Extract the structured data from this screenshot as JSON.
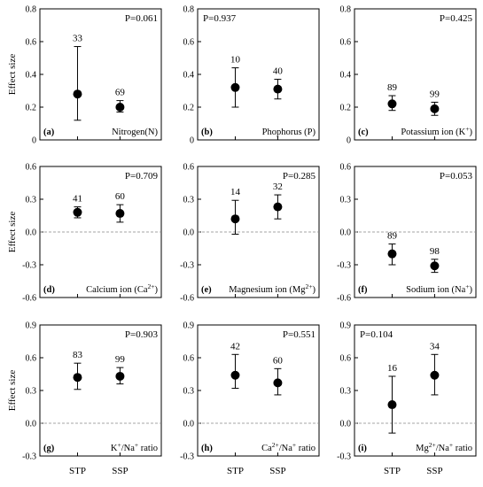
{
  "chart_data": [
    {
      "panel": "(a)",
      "type": "scatter",
      "ylabel": "Effect size",
      "ylim": [
        0,
        0.8
      ],
      "yticks": [
        "0",
        "0.2",
        "0.4",
        "0.6",
        "0.8"
      ],
      "zero_line": false,
      "pvalue": "P=0.061",
      "pvalue_pos": "right",
      "variable": "Nitrogen(N)",
      "categories": [
        "STP",
        "SSP"
      ],
      "values": [
        0.28,
        0.2
      ],
      "lower": [
        0.12,
        0.17
      ],
      "upper": [
        0.57,
        0.24
      ],
      "n": [
        "33",
        "69"
      ]
    },
    {
      "panel": "(b)",
      "type": "scatter",
      "ylabel": "",
      "ylim": [
        0,
        0.8
      ],
      "yticks": [
        "0",
        "0.2",
        "0.4",
        "0.6",
        "0.8"
      ],
      "zero_line": false,
      "pvalue": "P=0.937",
      "pvalue_pos": "left",
      "variable": "Phophorus (P)",
      "categories": [
        "STP",
        "SSP"
      ],
      "values": [
        0.32,
        0.31
      ],
      "lower": [
        0.2,
        0.25
      ],
      "upper": [
        0.44,
        0.37
      ],
      "n": [
        "10",
        "40"
      ]
    },
    {
      "panel": "(c)",
      "type": "scatter",
      "ylabel": "",
      "ylim": [
        0,
        0.8
      ],
      "yticks": [
        "0",
        "0.2",
        "0.4",
        "0.6",
        "0.8"
      ],
      "zero_line": false,
      "pvalue": "P=0.425",
      "pvalue_pos": "right",
      "variable": "Potassium ion (K",
      "variable_sup": "+",
      "variable_end": ")",
      "categories": [
        "STP",
        "SSP"
      ],
      "values": [
        0.22,
        0.19
      ],
      "lower": [
        0.18,
        0.15
      ],
      "upper": [
        0.27,
        0.23
      ],
      "n": [
        "89",
        "99"
      ]
    },
    {
      "panel": "(d)",
      "type": "scatter",
      "ylabel": "Effect size",
      "ylim": [
        -0.6,
        0.6
      ],
      "yticks": [
        "-0.6",
        "-0.3",
        "0.0",
        "0.3",
        "0.6"
      ],
      "zero_line": true,
      "pvalue": "P=0.709",
      "pvalue_pos": "right",
      "variable": "Calcium ion (Ca",
      "variable_sup": "2+",
      "variable_end": ")",
      "categories": [
        "STP",
        "SSP"
      ],
      "values": [
        0.18,
        0.17
      ],
      "lower": [
        0.13,
        0.09
      ],
      "upper": [
        0.23,
        0.25
      ],
      "n": [
        "41",
        "60"
      ]
    },
    {
      "panel": "(e)",
      "type": "scatter",
      "ylabel": "",
      "ylim": [
        -0.6,
        0.6
      ],
      "yticks": [
        "-0.6",
        "-0.3",
        "0.0",
        "0.3",
        "0.6"
      ],
      "zero_line": true,
      "pvalue": "P=0.285",
      "pvalue_pos": "right",
      "variable": "Magnesium ion (Mg",
      "variable_sup": "2+",
      "variable_end": ")",
      "categories": [
        "STP",
        "SSP"
      ],
      "values": [
        0.12,
        0.23
      ],
      "lower": [
        -0.02,
        0.12
      ],
      "upper": [
        0.29,
        0.34
      ],
      "n": [
        "14",
        "32"
      ]
    },
    {
      "panel": "(f)",
      "type": "scatter",
      "ylabel": "",
      "ylim": [
        -0.6,
        0.6
      ],
      "yticks": [
        "-0.6",
        "-0.3",
        "0.0",
        "0.3",
        "0.6"
      ],
      "zero_line": true,
      "pvalue": "P=0.053",
      "pvalue_pos": "right",
      "variable": "Sodium ion (Na",
      "variable_sup": "+",
      "variable_end": ")",
      "categories": [
        "STP",
        "SSP"
      ],
      "values": [
        -0.2,
        -0.31
      ],
      "lower": [
        -0.3,
        -0.37
      ],
      "upper": [
        -0.11,
        -0.25
      ],
      "n": [
        "89",
        "98"
      ]
    },
    {
      "panel": "(g)",
      "type": "scatter",
      "ylabel": "Effect size",
      "ylim": [
        -0.3,
        0.9
      ],
      "yticks": [
        "-0.3",
        "0.0",
        "0.3",
        "0.6",
        "0.9"
      ],
      "zero_line": true,
      "pvalue": "P=0.903",
      "pvalue_pos": "right",
      "variable": "K",
      "variable_sup": "+",
      "variable_end": "/Na",
      "variable_sup2": "+",
      "variable_end2": " ratio",
      "categories": [
        "STP",
        "SSP"
      ],
      "values": [
        0.42,
        0.43
      ],
      "lower": [
        0.31,
        0.36
      ],
      "upper": [
        0.55,
        0.51
      ],
      "n": [
        "83",
        "99"
      ]
    },
    {
      "panel": "(h)",
      "type": "scatter",
      "ylabel": "",
      "ylim": [
        -0.3,
        0.9
      ],
      "yticks": [
        "-0.3",
        "0.0",
        "0.3",
        "0.6",
        "0.9"
      ],
      "zero_line": true,
      "pvalue": "P=0.551",
      "pvalue_pos": "right",
      "variable": "Ca",
      "variable_sup": "2+",
      "variable_end": "/Na",
      "variable_sup2": "+",
      "variable_end2": " ratio",
      "categories": [
        "STP",
        "SSP"
      ],
      "values": [
        0.44,
        0.37
      ],
      "lower": [
        0.32,
        0.26
      ],
      "upper": [
        0.63,
        0.5
      ],
      "n": [
        "42",
        "60"
      ]
    },
    {
      "panel": "(i)",
      "type": "scatter",
      "ylabel": "",
      "ylim": [
        -0.3,
        0.9
      ],
      "yticks": [
        "-0.3",
        "0.0",
        "0.3",
        "0.6",
        "0.9"
      ],
      "zero_line": true,
      "pvalue": "P=0.104",
      "pvalue_pos": "left",
      "variable": "Mg",
      "variable_sup": "2+",
      "variable_end": "/Na",
      "variable_sup2": "+",
      "variable_end2": " ratio",
      "categories": [
        "STP",
        "SSP"
      ],
      "values": [
        0.17,
        0.44
      ],
      "lower": [
        -0.09,
        0.26
      ],
      "upper": [
        0.43,
        0.63
      ],
      "n": [
        "16",
        "34"
      ]
    }
  ],
  "xcategory_labels": [
    "STP",
    "SSP"
  ]
}
